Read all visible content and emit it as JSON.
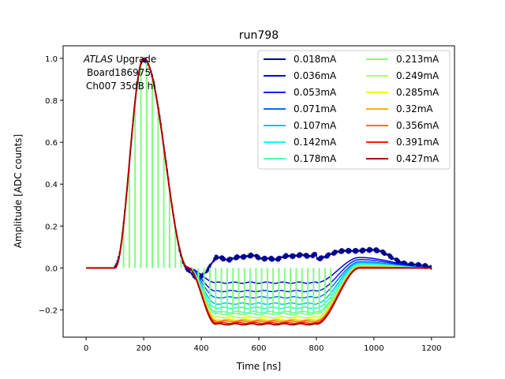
{
  "chart_data": {
    "type": "line",
    "title": "run798",
    "xlabel": "Time [ns]",
    "ylabel": "Amplitude [ADC counts]",
    "xlim": [
      -80,
      1280
    ],
    "ylim": [
      -0.33,
      1.06
    ],
    "xticks": [
      0,
      200,
      400,
      600,
      800,
      1000,
      1200
    ],
    "yticks": [
      -0.2,
      0.0,
      0.2,
      0.4,
      0.6,
      0.8,
      1.0
    ],
    "xtick_labels": [
      "0",
      "200",
      "400",
      "600",
      "800",
      "1000",
      "1200"
    ],
    "ytick_labels": [
      "−0.2",
      "0.0",
      "0.2",
      "0.4",
      "0.6",
      "0.8",
      "1.0"
    ],
    "annotation": {
      "italic": "ATLAS",
      "line1_rest": " Upgrade",
      "line2": "Board186975",
      "line3": "Ch007 35dB hi"
    },
    "legend_position": "top-right",
    "pulse": {
      "start_ns": 100,
      "peak_ns": 200,
      "peak_value": 1.0,
      "zero_crossing_ns": 355,
      "undershoot_end_ns": 800,
      "recovery_ns": 1000,
      "end_ns": 1200
    },
    "series": [
      {
        "name": "0.018mA",
        "color": "#00008f",
        "undershoot": 0.05,
        "overshoot": 0.09
      },
      {
        "name": "0.036mA",
        "color": "#0000df",
        "undershoot": -0.07,
        "overshoot": 0.05
      },
      {
        "name": "0.053mA",
        "color": "#0020ff",
        "undershoot": -0.11,
        "overshoot": 0.04
      },
      {
        "name": "0.071mA",
        "color": "#0070ff",
        "undershoot": -0.14,
        "overshoot": 0.03
      },
      {
        "name": "0.107mA",
        "color": "#00c0ff",
        "undershoot": -0.17,
        "overshoot": 0.025
      },
      {
        "name": "0.142mA",
        "color": "#10ffef",
        "undershoot": -0.19,
        "overshoot": 0.02
      },
      {
        "name": "0.178mA",
        "color": "#50ffaf",
        "undershoot": -0.21,
        "overshoot": 0.015
      },
      {
        "name": "0.213mA",
        "color": "#80ff80",
        "undershoot": -0.22,
        "overshoot": 0.01,
        "sampled": true
      },
      {
        "name": "0.249mA",
        "color": "#afff50",
        "undershoot": -0.235,
        "overshoot": 0.01
      },
      {
        "name": "0.285mA",
        "color": "#efff10",
        "undershoot": -0.245,
        "overshoot": 0.005
      },
      {
        "name": "0.32mA",
        "color": "#ffb000",
        "undershoot": -0.25,
        "overshoot": 0.005
      },
      {
        "name": "0.356mA",
        "color": "#ff7000",
        "undershoot": -0.255,
        "overshoot": 0.005
      },
      {
        "name": "0.391mA",
        "color": "#ff2000",
        "undershoot": -0.262,
        "overshoot": 0.0
      },
      {
        "name": "0.427mA",
        "color": "#b00000",
        "undershoot": -0.268,
        "overshoot": 0.0
      }
    ]
  }
}
